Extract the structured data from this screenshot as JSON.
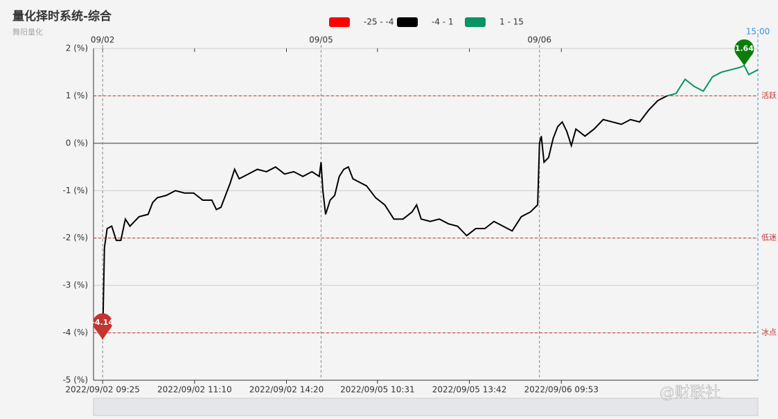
{
  "chart_data": {
    "type": "line",
    "title": "量化择时系统-综合",
    "subtitle": "舞阳量化",
    "watermark": "@财联社",
    "pieces": [
      {
        "min": -25,
        "max": -4,
        "label": "-25 - -4",
        "color": "#ff0000"
      },
      {
        "min": -4,
        "max": 1,
        "label": "-4 - 1",
        "color": "#000000"
      },
      {
        "min": 1,
        "max": 15,
        "label": "1 - 15",
        "color": "#069464"
      }
    ],
    "xlim": [
      -10,
      720
    ],
    "ylim": [
      -5,
      2
    ],
    "yticks": [
      {
        "value": 2,
        "label": "2 (%)"
      },
      {
        "value": 1,
        "label": "1 (%)"
      },
      {
        "value": 0,
        "label": "0 (%)"
      },
      {
        "value": -1,
        "label": "-1 (%)"
      },
      {
        "value": -2,
        "label": "-2 (%)"
      },
      {
        "value": -3,
        "label": "-3 (%)"
      },
      {
        "value": -4,
        "label": "-4 (%)"
      },
      {
        "value": -5,
        "label": "-5 (%)"
      }
    ],
    "xticks": [
      {
        "value": 0,
        "label": "2022/09/02 09:25"
      },
      {
        "value": 101,
        "label": "2022/09/02 11:10"
      },
      {
        "value": 202,
        "label": "2022/09/02 14:20"
      },
      {
        "value": 302,
        "label": "2022/09/05 10:31"
      },
      {
        "value": 403,
        "label": "2022/09/05 13:42"
      },
      {
        "value": 504,
        "label": "2022/09/06 09:53"
      }
    ],
    "day_ticks": [
      {
        "value": 0,
        "label": "09/02"
      },
      {
        "value": 240,
        "label": "09/05"
      },
      {
        "value": 480,
        "label": "09/06"
      }
    ],
    "end_tick": {
      "value": 720,
      "label": "15:00"
    },
    "mark_lines": [
      {
        "value": 1,
        "label": "活跃"
      },
      {
        "value": -2,
        "label": "低迷"
      },
      {
        "value": -4,
        "label": "冰点"
      }
    ],
    "x": [
      0,
      2,
      5,
      10,
      15,
      20,
      25,
      30,
      40,
      50,
      55,
      60,
      70,
      80,
      90,
      100,
      110,
      120,
      125,
      130,
      135,
      140,
      145,
      150,
      160,
      170,
      180,
      190,
      200,
      210,
      220,
      230,
      238,
      240,
      242,
      245,
      250,
      255,
      260,
      265,
      270,
      275,
      280,
      290,
      300,
      310,
      320,
      330,
      340,
      345,
      350,
      360,
      370,
      380,
      390,
      400,
      410,
      420,
      430,
      440,
      450,
      460,
      470,
      478,
      480,
      482,
      485,
      490,
      495,
      500,
      505,
      510,
      515,
      520,
      530,
      540,
      550,
      560,
      570,
      580,
      590,
      600,
      610,
      620,
      630,
      640,
      650,
      660,
      670,
      680,
      690,
      700,
      705,
      710,
      720
    ],
    "series": [
      {
        "name": "综合",
        "values": [
          -4.14,
          -2.2,
          -1.8,
          -1.75,
          -2.05,
          -2.05,
          -1.6,
          -1.75,
          -1.55,
          -1.5,
          -1.25,
          -1.15,
          -1.1,
          -1.0,
          -1.05,
          -1.05,
          -1.2,
          -1.2,
          -1.4,
          -1.35,
          -1.1,
          -0.85,
          -0.55,
          -0.75,
          -0.65,
          -0.55,
          -0.6,
          -0.5,
          -0.65,
          -0.6,
          -0.7,
          -0.6,
          -0.7,
          -0.4,
          -1.0,
          -1.5,
          -1.2,
          -1.1,
          -0.7,
          -0.55,
          -0.5,
          -0.75,
          -0.8,
          -0.9,
          -1.15,
          -1.3,
          -1.6,
          -1.6,
          -1.45,
          -1.3,
          -1.6,
          -1.65,
          -1.6,
          -1.7,
          -1.75,
          -1.95,
          -1.8,
          -1.8,
          -1.65,
          -1.75,
          -1.85,
          -1.55,
          -1.45,
          -1.3,
          0.0,
          0.15,
          -0.4,
          -0.3,
          0.1,
          0.35,
          0.45,
          0.25,
          -0.05,
          0.3,
          0.15,
          0.3,
          0.5,
          0.45,
          0.4,
          0.5,
          0.45,
          0.7,
          0.9,
          1.0,
          1.05,
          1.35,
          1.2,
          1.1,
          1.4,
          1.5,
          1.55,
          1.6,
          1.64,
          1.45,
          1.55
        ]
      }
    ]
  }
}
